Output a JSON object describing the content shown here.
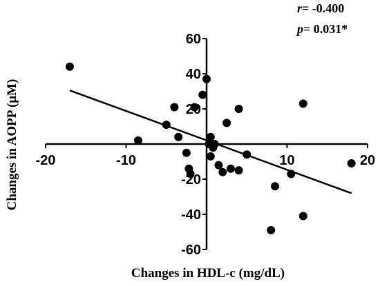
{
  "chart_data": {
    "type": "scatter",
    "title": "",
    "xlabel": "Changes in HDL-c (mg/dL)",
    "ylabel": "Changes in AOPP (μM)",
    "xlim": [
      -20,
      20
    ],
    "ylim": [
      -60,
      60
    ],
    "x_ticks": [
      "-20",
      "-10",
      "10",
      "20"
    ],
    "y_ticks": [
      "60",
      "40",
      "20",
      "-20",
      "-40",
      "-60"
    ],
    "grid": false,
    "axes_cross_at_origin": true,
    "annotations": {
      "r_symbol": "r",
      "r_value": "= -0.400",
      "p_symbol": "p",
      "p_value": "= 0.031*"
    },
    "points": [
      {
        "x": -17,
        "y": 44
      },
      {
        "x": -8.5,
        "y": 2
      },
      {
        "x": -5,
        "y": 11
      },
      {
        "x": -4,
        "y": 21
      },
      {
        "x": -3.5,
        "y": 4
      },
      {
        "x": -2.5,
        "y": -5
      },
      {
        "x": -2.2,
        "y": -14
      },
      {
        "x": -2,
        "y": -17
      },
      {
        "x": -1.5,
        "y": 21
      },
      {
        "x": -0.5,
        "y": 28
      },
      {
        "x": 0,
        "y": 37
      },
      {
        "x": 0.3,
        "y": 0
      },
      {
        "x": 0.5,
        "y": 4
      },
      {
        "x": 0.5,
        "y": -7
      },
      {
        "x": 0.8,
        "y": -2
      },
      {
        "x": 1,
        "y": 0
      },
      {
        "x": 1.5,
        "y": -12
      },
      {
        "x": 2,
        "y": -16
      },
      {
        "x": 2.5,
        "y": 12
      },
      {
        "x": 3,
        "y": -14
      },
      {
        "x": 4,
        "y": 20
      },
      {
        "x": 4,
        "y": -15
      },
      {
        "x": 5,
        "y": -6
      },
      {
        "x": 8,
        "y": -49
      },
      {
        "x": 8.5,
        "y": -24
      },
      {
        "x": 10.5,
        "y": -17
      },
      {
        "x": 12,
        "y": -41
      },
      {
        "x": 12,
        "y": 23
      },
      {
        "x": 18,
        "y": -11
      }
    ],
    "regression_line": {
      "x": [
        -17,
        18
      ],
      "y": [
        30.5,
        -28
      ]
    },
    "colors": {
      "points": "#000000",
      "line": "#000000",
      "axes": "#000000"
    }
  }
}
